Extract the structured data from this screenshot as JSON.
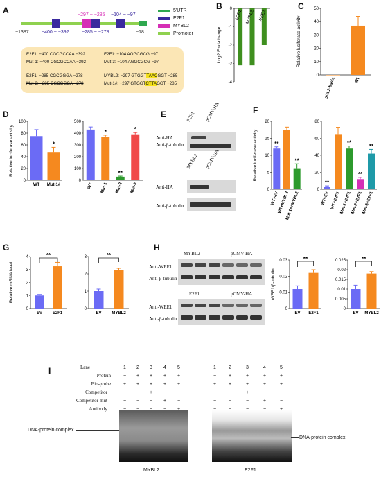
{
  "panels": {
    "A": "A",
    "B": "B",
    "C": "C",
    "D": "D",
    "E": "E",
    "F": "F",
    "G": "G",
    "H": "H",
    "I": "I"
  },
  "panelA": {
    "legend": [
      "5'UTR",
      "E2F1",
      "MYBL2",
      "Promoter"
    ],
    "legend_colors": [
      "#2fa84f",
      "#3a2a9e",
      "#d62fb6",
      "#8fd14f"
    ],
    "pos_start": "−1387",
    "pos_end": "−18",
    "range_top_1": "−297 ~ −285",
    "range_top_2": "−104 ~ −97",
    "range_bot_1": "−400 ~ −392",
    "range_bot_2": "−285 ~ −278",
    "seq": {
      "l1": "E2F1: −400 CGCGCCAA −392",
      "l2": "Mut-1: −400 CGCGCCAA −392",
      "l3": "E2F1: −285 CGCGGGA −278",
      "l4": "Mut-2: −285 CGCGGGA −278",
      "r1": "E2F1: −104 AGGCGCG −97",
      "r2": "Mut-3: −104 AGGCGCG −97",
      "r3a": "MYBL2: −297 GTGGT",
      "r3h": "TAAC",
      "r3b": "GGT −285",
      "r4a": "Mut-1#: −297 GTGGT",
      "r4h": "CTTA",
      "r4b": "GGT −285"
    }
  },
  "chart_data": [
    {
      "id": "B",
      "type": "bar",
      "categories": [
        "E2F1",
        "MYBL2",
        "WEE1"
      ],
      "values": [
        -3.1,
        -3.1,
        -2.0
      ],
      "ylabel": "Log2 Fold-change",
      "ylim": [
        -4,
        0
      ],
      "yticks": [
        0,
        -1,
        -2,
        -3,
        -4
      ],
      "color": "#3f8f1f"
    },
    {
      "id": "C",
      "type": "bar",
      "categories": [
        "pGL3-basic",
        "WT"
      ],
      "values": [
        0,
        37
      ],
      "errors": [
        0,
        7
      ],
      "ylabel": "Relative luciferase activity",
      "ylim": [
        0,
        50
      ],
      "yticks": [
        0,
        10,
        20,
        30,
        40,
        50
      ],
      "color": "#f5891f"
    },
    {
      "id": "D1",
      "type": "bar",
      "categories": [
        "WT",
        "Mut-1#"
      ],
      "values": [
        75,
        48
      ],
      "errors": [
        11,
        8
      ],
      "sig": [
        "",
        "*"
      ],
      "ylabel": "Relative luciferase activity",
      "ylim": [
        0,
        100
      ],
      "yticks": [
        0,
        20,
        40,
        60,
        80,
        100
      ],
      "colors": [
        "#6b6bf5",
        "#f5891f"
      ]
    },
    {
      "id": "D2",
      "type": "bar",
      "categories": [
        "WT",
        "Mut-1",
        "Mut-2",
        "Mut-3"
      ],
      "values": [
        430,
        365,
        30,
        390
      ],
      "errors": [
        22,
        18,
        5,
        15
      ],
      "sig": [
        "",
        "*",
        "**",
        "*"
      ],
      "ylim": [
        0,
        500
      ],
      "yticks": [
        0,
        100,
        200,
        300,
        400,
        500
      ],
      "colors": [
        "#6b6bf5",
        "#f5891f",
        "#2d9a2d",
        "#f04848"
      ]
    },
    {
      "id": "F1",
      "type": "bar",
      "categories": [
        "WT+EV",
        "WT+MYBL2",
        "Mut-1#+MYBL2"
      ],
      "values": [
        12,
        17.5,
        6
      ],
      "errors": [
        0.5,
        0.8,
        1.5
      ],
      "sig": [
        "**",
        "",
        "**"
      ],
      "ylabel": "Relative luciferase activity",
      "ylim": [
        0,
        20
      ],
      "yticks": [
        0,
        5,
        10,
        15,
        20
      ],
      "colors": [
        "#6b6bf5",
        "#f5891f",
        "#2d9a2d"
      ]
    },
    {
      "id": "F2",
      "type": "bar",
      "categories": [
        "WT+EV",
        "WT+E2F1",
        "Mut-1+E2F1",
        "Mut-2+E2F1",
        "Mut-3+E2F1"
      ],
      "values": [
        3,
        65,
        48,
        12,
        42
      ],
      "errors": [
        1,
        8,
        3,
        2,
        5
      ],
      "sig": [
        "**",
        "",
        "**",
        "**",
        "**"
      ],
      "ylim": [
        0,
        80
      ],
      "yticks": [
        0,
        20,
        40,
        60,
        80
      ],
      "colors": [
        "#6b6bf5",
        "#f5891f",
        "#2d9a2d",
        "#d62fb6",
        "#1f9aa8"
      ]
    },
    {
      "id": "G1",
      "type": "bar",
      "categories": [
        "EV",
        "E2F1"
      ],
      "values": [
        1,
        3.25
      ],
      "errors": [
        0.08,
        0.3
      ],
      "sig": "**",
      "ylabel": "Relative mRNA level",
      "ylim": [
        0,
        4
      ],
      "yticks": [
        0,
        1,
        2,
        3,
        4
      ],
      "colors": [
        "#6b6bf5",
        "#f5891f"
      ]
    },
    {
      "id": "G2",
      "type": "bar",
      "categories": [
        "EV",
        "MYBL2"
      ],
      "values": [
        1,
        2.2
      ],
      "errors": [
        0.12,
        0.12
      ],
      "sig": "**",
      "ylim": [
        0,
        3
      ],
      "yticks": [
        0,
        1,
        2,
        3
      ],
      "colors": [
        "#6b6bf5",
        "#f5891f"
      ]
    },
    {
      "id": "H1",
      "type": "bar",
      "categories": [
        "EV",
        "E2F1"
      ],
      "values": [
        0.012,
        0.022
      ],
      "errors": [
        0.002,
        0.002
      ],
      "sig": "**",
      "ylabel": "WEE1/β-tubulin",
      "ylim": [
        0,
        0.03
      ],
      "yticks": [
        0,
        0.01,
        0.02,
        0.03
      ],
      "colors": [
        "#6b6bf5",
        "#f5891f"
      ]
    },
    {
      "id": "H2",
      "type": "bar",
      "categories": [
        "EV",
        "MYBL2"
      ],
      "values": [
        0.01,
        0.018
      ],
      "errors": [
        0.002,
        0.001
      ],
      "sig": "**",
      "ylim": [
        0,
        0.025
      ],
      "yticks": [
        0,
        0.005,
        0.01,
        0.015,
        0.02,
        0.025
      ],
      "colors": [
        "#6b6bf5",
        "#f5891f"
      ]
    }
  ],
  "panelE": {
    "top_cols": [
      "E2F1",
      "pCMV-HA"
    ],
    "top_rows": [
      "Anti-HA",
      "Anti-β-tubulin"
    ],
    "bot_cols": [
      "MYBL2",
      "pCMV-HA"
    ],
    "bot_rows": [
      "Anti-HA",
      "Anti-β-tubulin"
    ]
  },
  "panelH": {
    "top_cols": [
      "MYBL2",
      "pCMV-HA"
    ],
    "top_rows": [
      "Anti-WEE1",
      "Anti-β-tubulin"
    ],
    "bot_cols": [
      "E2F1",
      "pCMV-HA"
    ],
    "bot_rows": [
      "Anti-WEE1",
      "Anti-β-tubulin"
    ]
  },
  "panelI": {
    "row_labels": [
      "Lane",
      "Protein",
      "Bio-probe",
      "Competitor",
      "Competitor-mut",
      "Antibody"
    ],
    "lanes": [
      "1",
      "2",
      "3",
      "4",
      "5"
    ],
    "grid": [
      [
        "−",
        "+",
        "+",
        "+",
        "+"
      ],
      [
        "+",
        "+",
        "+",
        "+",
        "+"
      ],
      [
        "−",
        "−",
        "+",
        "−",
        "−"
      ],
      [
        "−",
        "−",
        "−",
        "+",
        "−"
      ],
      [
        "−",
        "−",
        "−",
        "−",
        "+"
      ]
    ],
    "complex_label": "DNA-protein  complex",
    "complex_label_right": "DNA-protein complex",
    "gel_left": "MYBL2",
    "gel_right": "E2F1"
  }
}
